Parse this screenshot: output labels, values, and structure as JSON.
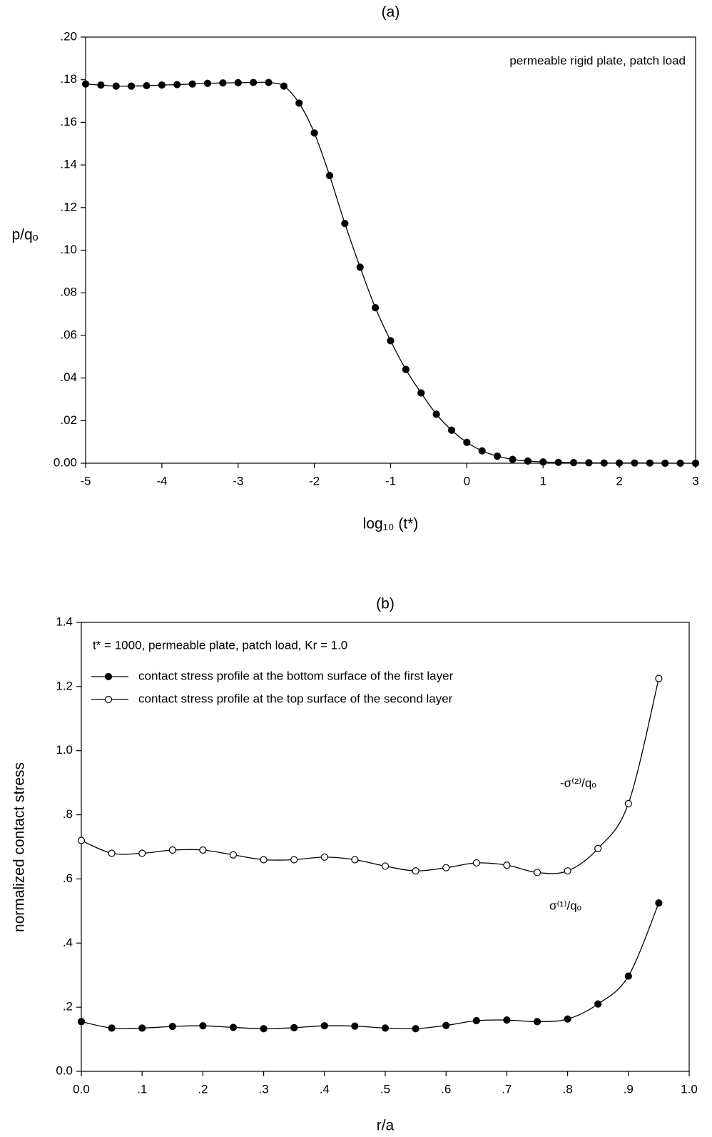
{
  "chart_data": [
    {
      "type": "line",
      "title": "(a)",
      "xlabel": "log₁₀ (t*)",
      "ylabel": "p/qₒ",
      "annotation": "permeable rigid plate, patch load",
      "x": [
        -5,
        -4.8,
        -4.6,
        -4.4,
        -4.2,
        -4,
        -3.8,
        -3.6,
        -3.4,
        -3.2,
        -3,
        -2.8,
        -2.6,
        -2.4,
        -2.2,
        -2,
        -1.8,
        -1.6,
        -1.4,
        -1.2,
        -1,
        -0.8,
        -0.6,
        -0.4,
        -0.2,
        0,
        0.2,
        0.4,
        0.6,
        0.8,
        1,
        1.2,
        1.4,
        1.6,
        1.8,
        2,
        2.2,
        2.4,
        2.6,
        2.8,
        3
      ],
      "values": [
        0.178,
        0.1775,
        0.177,
        0.177,
        0.1772,
        0.1775,
        0.1777,
        0.178,
        0.1783,
        0.1785,
        0.1786,
        0.1787,
        0.1787,
        0.177,
        0.169,
        0.155,
        0.135,
        0.1125,
        0.092,
        0.073,
        0.0575,
        0.044,
        0.033,
        0.023,
        0.0155,
        0.0098,
        0.0058,
        0.0033,
        0.0018,
        0.001,
        0.0006,
        0.0004,
        0.0003,
        0.0002,
        0.0001,
        0.0001,
        0.0001,
        0.0001,
        0,
        0,
        0
      ],
      "color": "#000000",
      "marker": "filled",
      "xlim": [
        -5,
        3
      ],
      "xticks": [
        -5,
        -4,
        -3,
        -2,
        -1,
        0,
        1,
        2,
        3
      ],
      "ylim": [
        0,
        0.2
      ],
      "yticks": [
        {
          "value": 0,
          "label": "0.00"
        },
        {
          "value": 0.02,
          "label": ".02"
        },
        {
          "value": 0.04,
          "label": ".04"
        },
        {
          "value": 0.06,
          "label": ".06"
        },
        {
          "value": 0.08,
          "label": ".08"
        },
        {
          "value": 0.1,
          "label": ".10"
        },
        {
          "value": 0.12,
          "label": ".12"
        },
        {
          "value": 0.14,
          "label": ".14"
        },
        {
          "value": 0.16,
          "label": ".16"
        },
        {
          "value": 0.18,
          "label": ".18"
        },
        {
          "value": 0.2,
          "label": ".20"
        }
      ],
      "grid": false
    },
    {
      "type": "line",
      "title": "(b)",
      "xlabel": "r/a",
      "ylabel": "normalized contact stress",
      "annotation": "t* = 1000, permeable plate, patch load, Kr = 1.0",
      "x": [
        0,
        0.05,
        0.1,
        0.15,
        0.2,
        0.25,
        0.3,
        0.35,
        0.4,
        0.45,
        0.5,
        0.55,
        0.6,
        0.65,
        0.7,
        0.75,
        0.8,
        0.85,
        0.9,
        0.95
      ],
      "series": [
        {
          "name": "contact stress profile at the bottom surface of the first layer",
          "label": "σ⁽¹⁾/qₒ",
          "color": "#000000",
          "marker": "filled",
          "values": [
            0.155,
            0.135,
            0.135,
            0.14,
            0.142,
            0.137,
            0.133,
            0.136,
            0.142,
            0.141,
            0.135,
            0.133,
            0.143,
            0.158,
            0.16,
            0.155,
            0.163,
            0.21,
            0.297,
            0.525
          ]
        },
        {
          "name": "contact stress profile at the top surface of the second layer",
          "label": "-σ⁽²⁾/qₒ",
          "color": "#000000",
          "marker": "open",
          "values": [
            0.72,
            0.68,
            0.68,
            0.69,
            0.69,
            0.675,
            0.66,
            0.66,
            0.668,
            0.66,
            0.64,
            0.625,
            0.635,
            0.65,
            0.643,
            0.62,
            0.625,
            0.695,
            0.835,
            1.225
          ]
        }
      ],
      "legend": "upper left",
      "xlim": [
        0,
        1
      ],
      "xticks": [
        {
          "value": 0,
          "label": "0.0"
        },
        {
          "value": 0.1,
          "label": ".1"
        },
        {
          "value": 0.2,
          "label": ".2"
        },
        {
          "value": 0.3,
          "label": ".3"
        },
        {
          "value": 0.4,
          "label": ".4"
        },
        {
          "value": 0.5,
          "label": ".5"
        },
        {
          "value": 0.6,
          "label": ".6"
        },
        {
          "value": 0.7,
          "label": ".7"
        },
        {
          "value": 0.8,
          "label": ".8"
        },
        {
          "value": 0.9,
          "label": ".9"
        },
        {
          "value": 1,
          "label": "1.0"
        }
      ],
      "ylim": [
        0,
        1.4
      ],
      "yticks": [
        {
          "value": 0,
          "label": "0.0"
        },
        {
          "value": 0.2,
          "label": ".2"
        },
        {
          "value": 0.4,
          "label": ".4"
        },
        {
          "value": 0.6,
          "label": ".6"
        },
        {
          "value": 0.8,
          "label": ".8"
        },
        {
          "value": 1,
          "label": "1.0"
        },
        1.2,
        1.4
      ],
      "grid": false
    }
  ]
}
